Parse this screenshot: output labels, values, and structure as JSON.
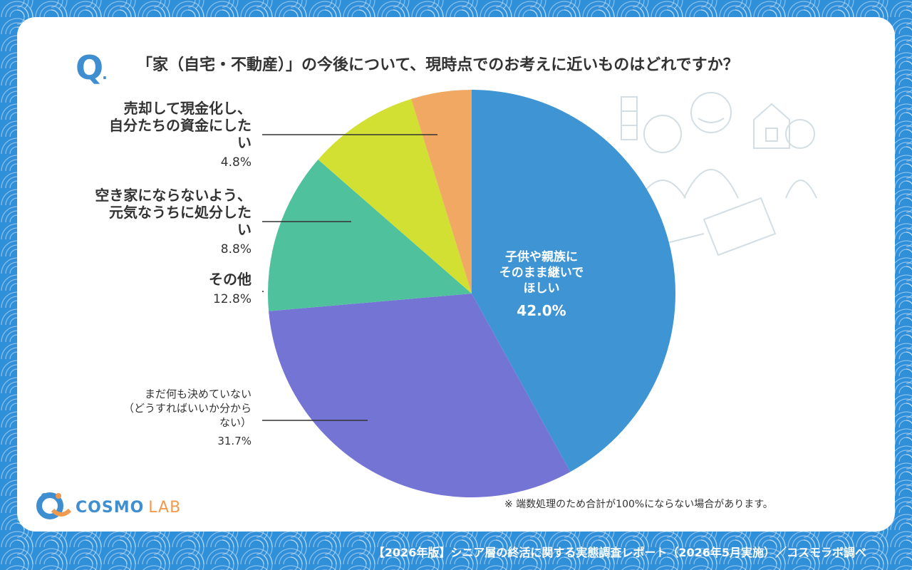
{
  "question": {
    "mark": "Q",
    "text": "「家（自宅・不動産）」の今後について、現時点でのお考えに近いものはどれですか？"
  },
  "chart_data": {
    "type": "pie",
    "title": "「家（自宅・不動産）」の今後について、現時点でのお考えに近いものはどれですか？",
    "slices": [
      {
        "label": "子供や親族にそのまま継いでほしい",
        "value": 42.0,
        "display": "42.0%",
        "color": "#3f95d4"
      },
      {
        "label": "まだ何も決めていない（どうすればいいか分からない）",
        "value": 31.7,
        "display": "31.7%",
        "color": "#7474d5"
      },
      {
        "label": "その他",
        "value": 12.8,
        "display": "12.8%",
        "color": "#4fc19d"
      },
      {
        "label": "空き家にならないよう、元気なうちに処分したい",
        "value": 8.8,
        "display": "8.8%",
        "color": "#d1e032"
      },
      {
        "label": "売却して現金化し、自分たちの資金にしたい",
        "value": 4.8,
        "display": "4.8%",
        "color": "#f0a862"
      }
    ]
  },
  "labels": {
    "slice0": {
      "line1": "子供や親族に",
      "line2": "そのまま継いで",
      "line3": "ほしい",
      "pct": "42.0%"
    },
    "slice1": {
      "line1": "まだ何も決めていない",
      "line2": "（どうすればいいか分から",
      "line3": "ない）",
      "pct": "31.7%"
    },
    "slice2": {
      "line1": "その他",
      "pct": "12.8%"
    },
    "slice3": {
      "line1": "空き家にならないよう、",
      "line2": "元気なうちに処分した",
      "line3": "い",
      "pct": "8.8%"
    },
    "slice4": {
      "line1": "売却して現金化し、",
      "line2": "自分たちの資金にした",
      "line3": "い",
      "pct": "4.8%"
    }
  },
  "note": "※ 端数処理のため合計が100%にならない場合があります。",
  "logo": {
    "main": "COSMO",
    "sub": "LAB"
  },
  "footer": "【2026年版】シニア層の終活に関する実態調査レポート（2026年5月実施）／コスモラボ調べ",
  "colors": {
    "background": "#2f8fd8",
    "accent": "#3f8fd0",
    "text": "#333333"
  }
}
